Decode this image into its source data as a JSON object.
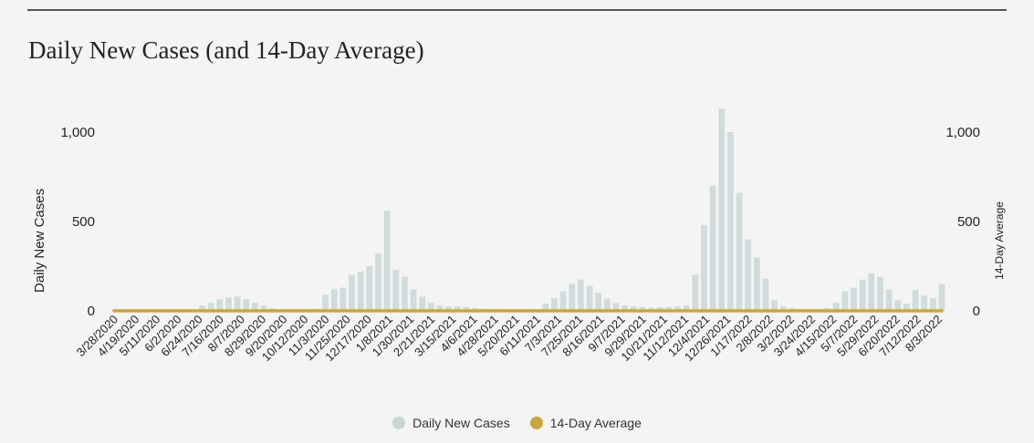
{
  "chart_data": {
    "type": "bar",
    "title": "Daily New Cases (and 14-Day Average)",
    "ylabel": "Daily New Cases",
    "y2label": "14-Day Average",
    "ylim": [
      0,
      1000
    ],
    "y2lim": [
      0,
      1000
    ],
    "y_ticks": [
      "0",
      "500",
      "1,000"
    ],
    "y2_ticks": [
      "0",
      "500",
      "1,000"
    ],
    "x_ticks": [
      "3/28/2020",
      "4/19/2020",
      "5/11/2020",
      "6/2/2020",
      "6/24/2020",
      "7/16/2020",
      "8/7/2020",
      "8/29/2020",
      "9/20/2020",
      "10/12/2020",
      "11/3/2020",
      "11/25/2020",
      "12/17/2020",
      "1/8/2021",
      "1/30/2021",
      "2/21/2021",
      "3/15/2021",
      "4/6/2021",
      "4/28/2021",
      "5/20/2021",
      "6/11/2021",
      "7/3/2021",
      "7/25/2021",
      "8/16/2021",
      "9/7/2021",
      "9/29/2021",
      "10/21/2021",
      "11/12/2021",
      "12/4/2021",
      "12/26/2021",
      "1/17/2022",
      "2/8/2022",
      "3/2/2022",
      "3/24/2022",
      "4/15/2022",
      "5/7/2022",
      "5/29/2022",
      "6/20/2022",
      "7/12/2022",
      "8/3/2022"
    ],
    "grid": false,
    "legend_position": "bottom",
    "series": [
      {
        "name": "Daily New Cases",
        "kind": "bar",
        "color": "#c9d6d6",
        "values": [
          2,
          5,
          3,
          4,
          2,
          4,
          3,
          3,
          6,
          8,
          30,
          45,
          65,
          75,
          80,
          65,
          45,
          30,
          15,
          10,
          8,
          8,
          10,
          12,
          90,
          120,
          130,
          200,
          220,
          250,
          320,
          560,
          230,
          190,
          120,
          80,
          45,
          30,
          25,
          25,
          20,
          15,
          12,
          10,
          8,
          6,
          6,
          8,
          10,
          40,
          70,
          110,
          150,
          175,
          140,
          100,
          70,
          45,
          30,
          25,
          20,
          18,
          20,
          22,
          25,
          30,
          200,
          480,
          700,
          1130,
          1000,
          660,
          400,
          300,
          180,
          60,
          25,
          15,
          12,
          10,
          8,
          15,
          45,
          110,
          130,
          175,
          210,
          190,
          120,
          60,
          40,
          115,
          85,
          70,
          150
        ]
      },
      {
        "name": "14-Day Average",
        "kind": "line",
        "color": "#c9a73e",
        "values": [
          0,
          0,
          0,
          0,
          0,
          0,
          0,
          0,
          0,
          0,
          0,
          0,
          0,
          0,
          0,
          0,
          0,
          0,
          0,
          0,
          0,
          0,
          0,
          0,
          0,
          0,
          0,
          0,
          0,
          0,
          0,
          0,
          0,
          0,
          0,
          0,
          0,
          0,
          0,
          0,
          0,
          0,
          0,
          0,
          0,
          0,
          0,
          0,
          0,
          0,
          0,
          0,
          0,
          0,
          0,
          0,
          0,
          0,
          0,
          0,
          0,
          0,
          0,
          0,
          0,
          0,
          0,
          0,
          0,
          0,
          0,
          0,
          0,
          0,
          0,
          0,
          0,
          0,
          0,
          0,
          0,
          0,
          0,
          0,
          0,
          0,
          0,
          0,
          0,
          0,
          0,
          0,
          0,
          0,
          0
        ]
      }
    ]
  }
}
